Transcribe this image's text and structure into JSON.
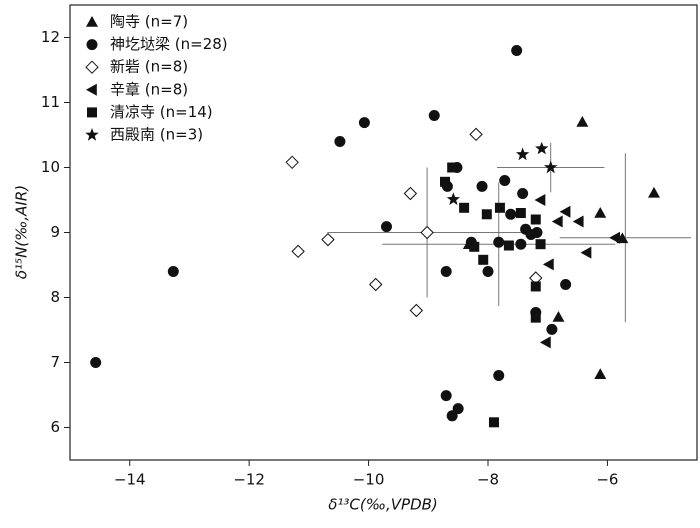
{
  "chart_data": {
    "type": "scatter",
    "xlabel": "δ¹³C(‰,VPDB)",
    "ylabel": "δ¹⁵N(‰,AIR)",
    "xlim": [
      -15,
      -4.5
    ],
    "ylim": [
      5.5,
      12.5
    ],
    "xticks": [
      {
        "value": -14,
        "label": "−14"
      },
      {
        "value": -12,
        "label": "−12"
      },
      {
        "value": -10,
        "label": "−10"
      },
      {
        "value": -8,
        "label": "−8"
      },
      {
        "value": -6,
        "label": "−6"
      }
    ],
    "yticks": [
      6,
      7,
      8,
      9,
      10,
      11,
      12
    ],
    "legend": "upper left",
    "series": [
      {
        "name": "陶寺 (n=7)",
        "marker": "triangle",
        "color": "#111111",
        "x": [
          -6.42,
          -5.22,
          -6.12,
          -6.82,
          -6.12,
          -8.32,
          -5.75
        ],
        "values": [
          10.7,
          9.61,
          9.3,
          7.7,
          6.82,
          8.82,
          8.91
        ]
      },
      {
        "name": "神圪垯梁 (n=28)",
        "marker": "circle",
        "color": "#111111",
        "x": [
          -14.57,
          -13.27,
          -7.52,
          -10.07,
          -10.48,
          -8.9,
          -8.52,
          -8.68,
          -9.7,
          -8.1,
          -7.72,
          -7.42,
          -8.7,
          -8.0,
          -8.7,
          -8.6,
          -8.5,
          -7.82,
          -6.7,
          -6.93,
          -7.2,
          -8.28,
          -7.82,
          -7.62,
          -7.37,
          -7.28,
          -7.45,
          -7.18
        ],
        "values": [
          7.0,
          8.4,
          11.8,
          10.69,
          10.4,
          10.8,
          10.0,
          9.71,
          9.09,
          9.71,
          9.8,
          9.6,
          8.4,
          8.4,
          6.49,
          6.18,
          6.29,
          6.8,
          8.2,
          7.51,
          7.77,
          8.85,
          8.85,
          9.28,
          9.05,
          8.97,
          8.82,
          9.0
        ]
      },
      {
        "name": "新砦 (n=8)",
        "marker": "diamond",
        "color": "#111111",
        "x": [
          -11.28,
          -11.18,
          -10.68,
          -9.88,
          -9.2,
          -9.3,
          -9.02,
          -8.2,
          -7.2
        ],
        "values": [
          10.08,
          8.71,
          8.89,
          8.2,
          7.8,
          9.6,
          9.0,
          10.51,
          8.3
        ]
      },
      {
        "name": "辛章 (n=8)",
        "marker": "triangle-left",
        "color": "#111111",
        "x": [
          -7.12,
          -6.83,
          -6.7,
          -6.48,
          -6.35,
          -6.98,
          -7.03,
          -5.87
        ],
        "values": [
          9.5,
          9.17,
          9.32,
          9.17,
          8.69,
          8.51,
          7.31,
          8.92
        ]
      },
      {
        "name": "清凉寺 (n=14)",
        "marker": "square",
        "color": "#111111",
        "x": [
          -8.72,
          -8.4,
          -8.02,
          -7.8,
          -8.23,
          -8.08,
          -7.65,
          -7.12,
          -7.2,
          -7.2,
          -7.9,
          -8.6,
          -7.45,
          -7.2
        ],
        "values": [
          9.78,
          9.38,
          9.28,
          9.38,
          8.78,
          8.58,
          8.8,
          8.82,
          8.17,
          7.69,
          6.08,
          10.0,
          9.3,
          9.2
        ]
      },
      {
        "name": "西殿南 (n=3)",
        "marker": "star",
        "color": "#111111",
        "x": [
          -7.42,
          -7.1,
          -8.58,
          -6.95
        ],
        "values": [
          10.2,
          10.29,
          9.51,
          10.0
        ]
      }
    ],
    "error_bars": [
      {
        "x": -9.02,
        "y": 9.0,
        "xerr": 1.67,
        "yerr": 1.0
      },
      {
        "x": -7.82,
        "y": 8.82,
        "xerr": 1.95,
        "yerr": 0.95
      },
      {
        "x": -5.7,
        "y": 8.92,
        "xerr": 1.1,
        "yerr": 1.3
      },
      {
        "x": -6.95,
        "y": 10.0,
        "xerr": 0.9,
        "yerr": 0.38
      }
    ]
  }
}
